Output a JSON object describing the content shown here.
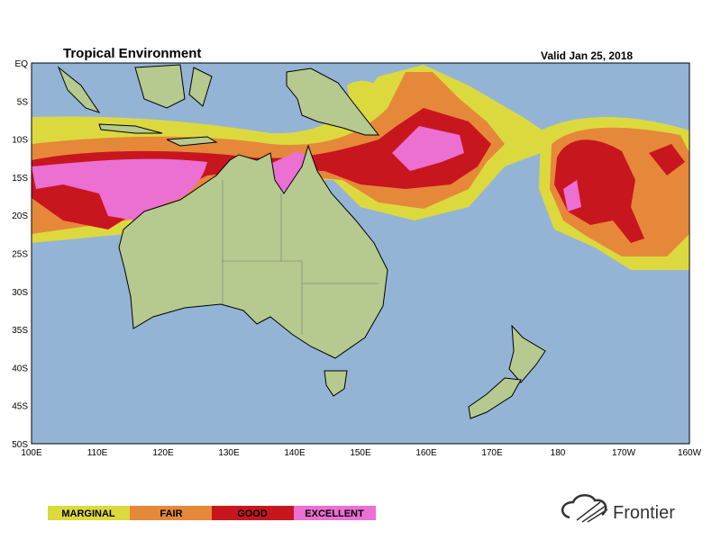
{
  "header": {
    "title": "Tropical Environment",
    "valid": "Valid Jan 25, 2018"
  },
  "map": {
    "lat_labels": [
      "EQ",
      "5S",
      "10S",
      "15S",
      "20S",
      "25S",
      "30S",
      "35S",
      "40S",
      "45S",
      "50S"
    ],
    "lon_labels": [
      "100E",
      "110E",
      "120E",
      "130E",
      "140E",
      "150E",
      "160E",
      "170E",
      "180",
      "170W",
      "160W"
    ]
  },
  "legend": [
    "MARGINAL",
    "FAIR",
    "GOOD",
    "EXCELLENT"
  ],
  "logo": "Frontier"
}
